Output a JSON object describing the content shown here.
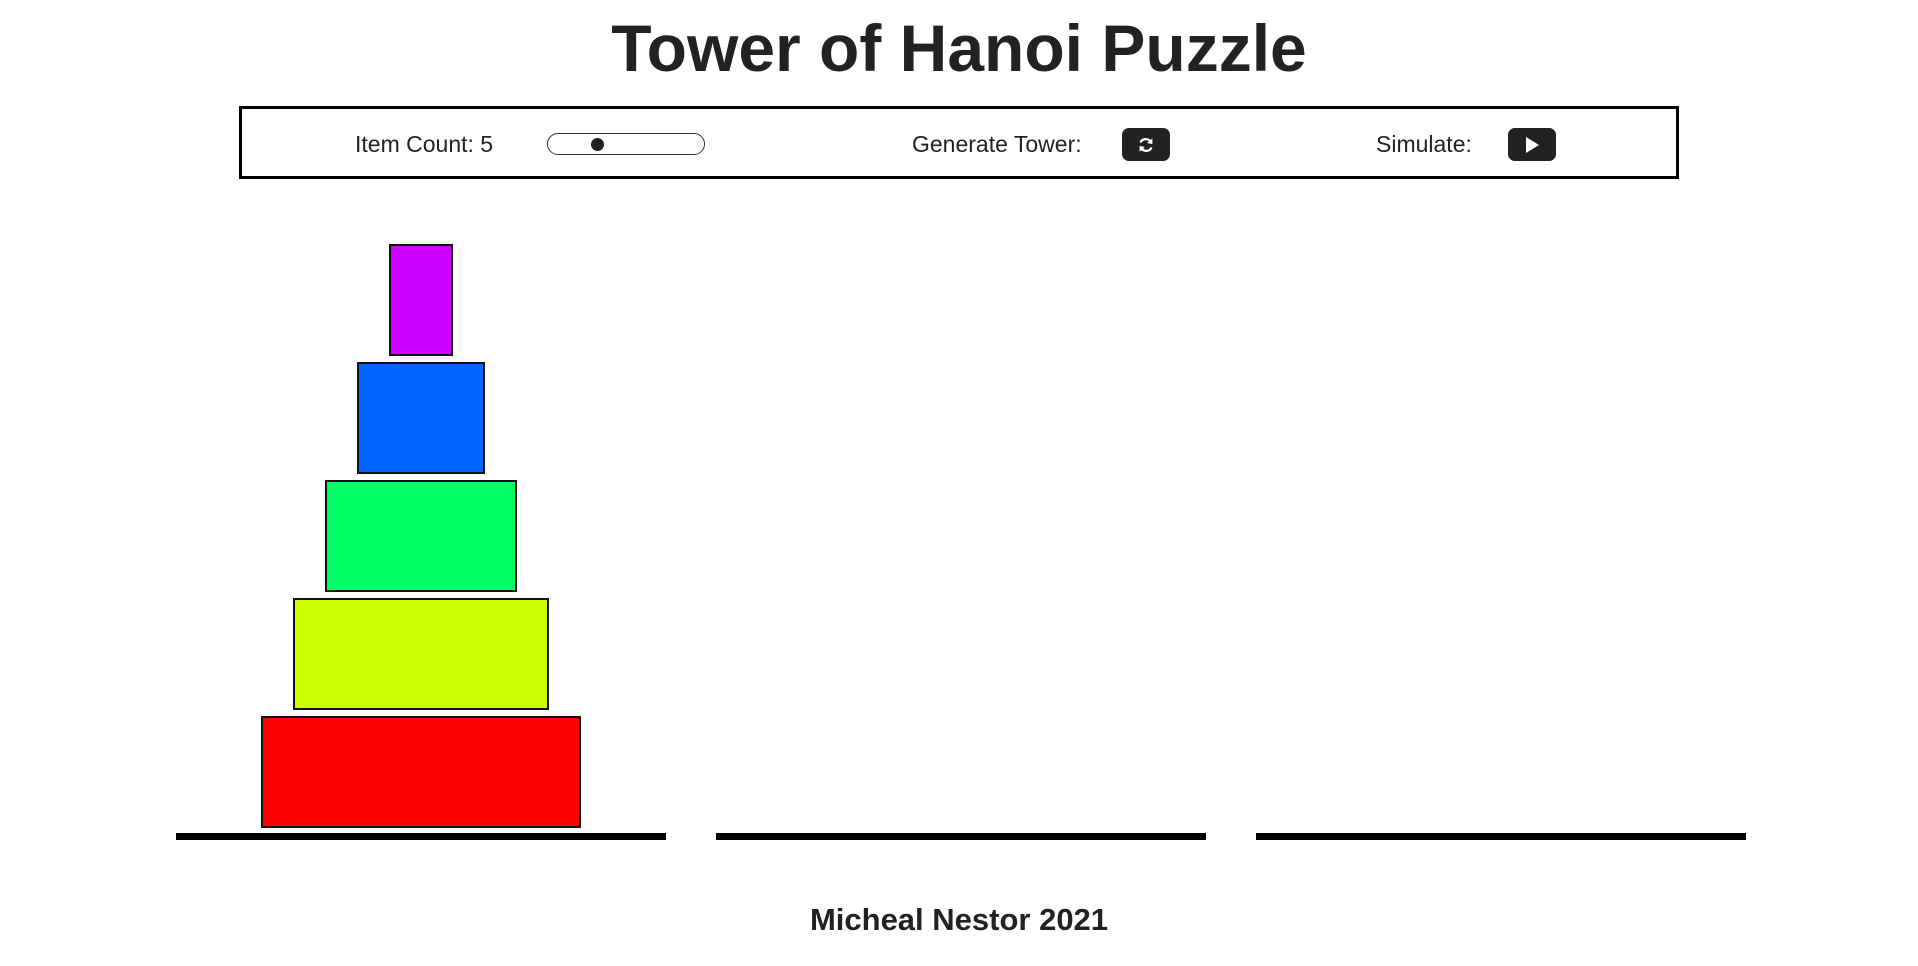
{
  "title": "Tower of Hanoi Puzzle",
  "controls": {
    "item_count_label": "Item Count: 5",
    "item_count": 5,
    "item_count_min": 3,
    "item_count_max": 10,
    "generate_label": "Generate Tower:",
    "generate_icon": "refresh-icon",
    "simulate_label": "Simulate:",
    "simulate_icon": "play-icon"
  },
  "towers": [
    {
      "name": "tower-1",
      "disks": [
        {
          "size": 5,
          "color": "#ff0000"
        },
        {
          "size": 4,
          "color": "#ccff00"
        },
        {
          "size": 3,
          "color": "#00ff66"
        },
        {
          "size": 2,
          "color": "#0066ff"
        },
        {
          "size": 1,
          "color": "#cc00ff"
        }
      ]
    },
    {
      "name": "tower-2",
      "disks": []
    },
    {
      "name": "tower-3",
      "disks": []
    }
  ],
  "footer": "Micheal Nestor 2021"
}
